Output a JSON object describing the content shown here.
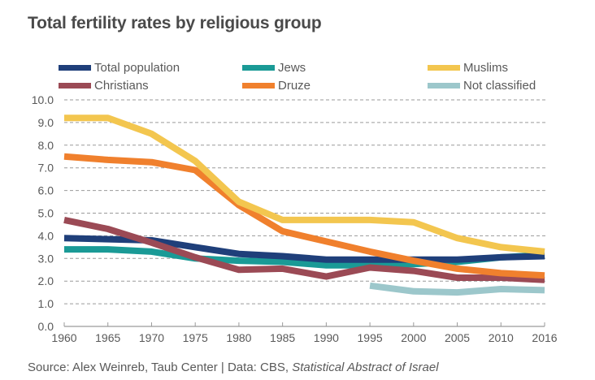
{
  "chart_data": {
    "type": "line",
    "title": "Total fertility rates by religious group",
    "xlabel": "",
    "ylabel": "",
    "x": [
      "1960",
      "1965",
      "1970",
      "1975",
      "1980",
      "1985",
      "1990",
      "1995",
      "2000",
      "2005",
      "2010",
      "2016"
    ],
    "ylim": [
      0,
      10
    ],
    "yticks": [
      "0.0",
      "1.0",
      "2.0",
      "3.0",
      "4.0",
      "5.0",
      "6.0",
      "7.0",
      "8.0",
      "9.0",
      "10.0"
    ],
    "grid": true,
    "legend_position": "top",
    "series": [
      {
        "name": "Total population",
        "color": "#1f3f7a",
        "values": [
          3.9,
          3.85,
          3.8,
          3.5,
          3.2,
          3.1,
          2.95,
          2.95,
          2.95,
          2.95,
          3.05,
          3.1
        ]
      },
      {
        "name": "Jews",
        "color": "#1a9a96",
        "values": [
          3.4,
          3.4,
          3.3,
          3.0,
          2.9,
          2.85,
          2.7,
          2.7,
          2.75,
          2.85,
          3.05,
          3.15
        ]
      },
      {
        "name": "Muslims",
        "color": "#f3c64f",
        "values": [
          9.2,
          9.2,
          8.5,
          7.3,
          5.5,
          4.7,
          4.7,
          4.7,
          4.6,
          3.9,
          3.5,
          3.3
        ]
      },
      {
        "name": "Christians",
        "color": "#9b4a55",
        "values": [
          4.7,
          4.3,
          3.7,
          3.05,
          2.5,
          2.55,
          2.2,
          2.6,
          2.45,
          2.15,
          2.15,
          2.05
        ]
      },
      {
        "name": "Druze",
        "color": "#f0802d",
        "values": [
          7.5,
          7.35,
          7.25,
          6.9,
          5.35,
          4.2,
          3.75,
          3.3,
          2.9,
          2.55,
          2.35,
          2.25
        ]
      },
      {
        "name": "Not classified",
        "color": "#9cc7cb",
        "values": [
          null,
          null,
          null,
          null,
          null,
          null,
          null,
          1.8,
          1.55,
          1.5,
          1.65,
          1.6
        ]
      }
    ]
  },
  "source": {
    "prefix": "Source: Alex Weinreb, Taub Center | Data: CBS, ",
    "publication": "Statistical Abstract of Israel"
  }
}
